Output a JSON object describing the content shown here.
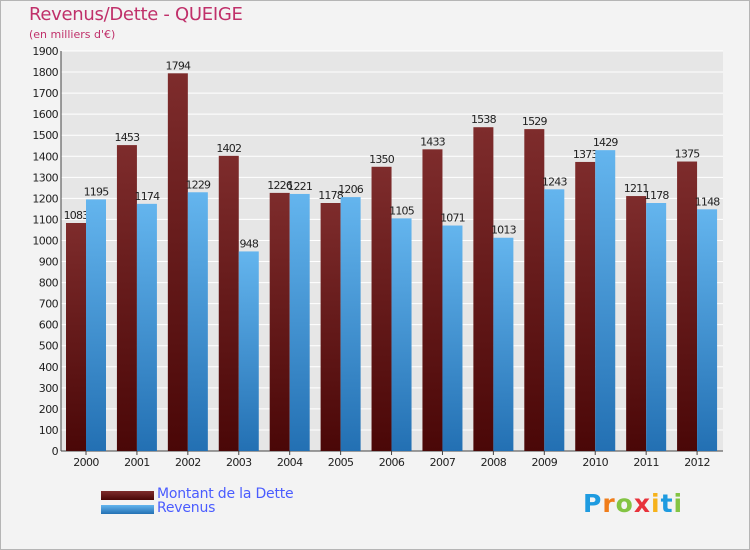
{
  "colors": {
    "title": "#c0306a",
    "legend_text": "#4a5cff",
    "debt_top": "#7e2c2c",
    "debt_bottom": "#4a0707",
    "revenue_top": "#64b5ee",
    "revenue_bottom": "#2370b3",
    "grid": "#ffffff",
    "plot_bg": "#e6e6e6"
  },
  "logo": {
    "letters": [
      {
        "ch": "P",
        "color": "#1e9be0"
      },
      {
        "ch": "r",
        "color": "#f07d1a"
      },
      {
        "ch": "o",
        "color": "#83c443"
      },
      {
        "ch": "x",
        "color": "#e8323b"
      },
      {
        "ch": "i",
        "color": "#f6b21b"
      },
      {
        "ch": "t",
        "color": "#1e9be0"
      },
      {
        "ch": "i",
        "color": "#83c443"
      }
    ]
  },
  "chart_data": {
    "type": "bar",
    "title": "Revenus/Dette - QUEIGE",
    "subtitle": "(en milliers d'€)",
    "xlabel": "",
    "ylabel": "",
    "ylim": [
      0,
      1900
    ],
    "ytick_step": 100,
    "grid": true,
    "legend_position": "bottom-left",
    "categories": [
      "2000",
      "2001",
      "2002",
      "2003",
      "2004",
      "2005",
      "2006",
      "2007",
      "2008",
      "2009",
      "2010",
      "2011",
      "2012"
    ],
    "series": [
      {
        "name": "Montant de la Dette",
        "values": [
          1083,
          1453,
          1794,
          1402,
          1226,
          1178,
          1350,
          1433,
          1538,
          1529,
          1373,
          1211,
          1375
        ]
      },
      {
        "name": "Revenus",
        "values": [
          1195,
          1174,
          1229,
          948,
          1221,
          1206,
          1105,
          1071,
          1013,
          1243,
          1429,
          1178,
          1148
        ]
      }
    ]
  }
}
